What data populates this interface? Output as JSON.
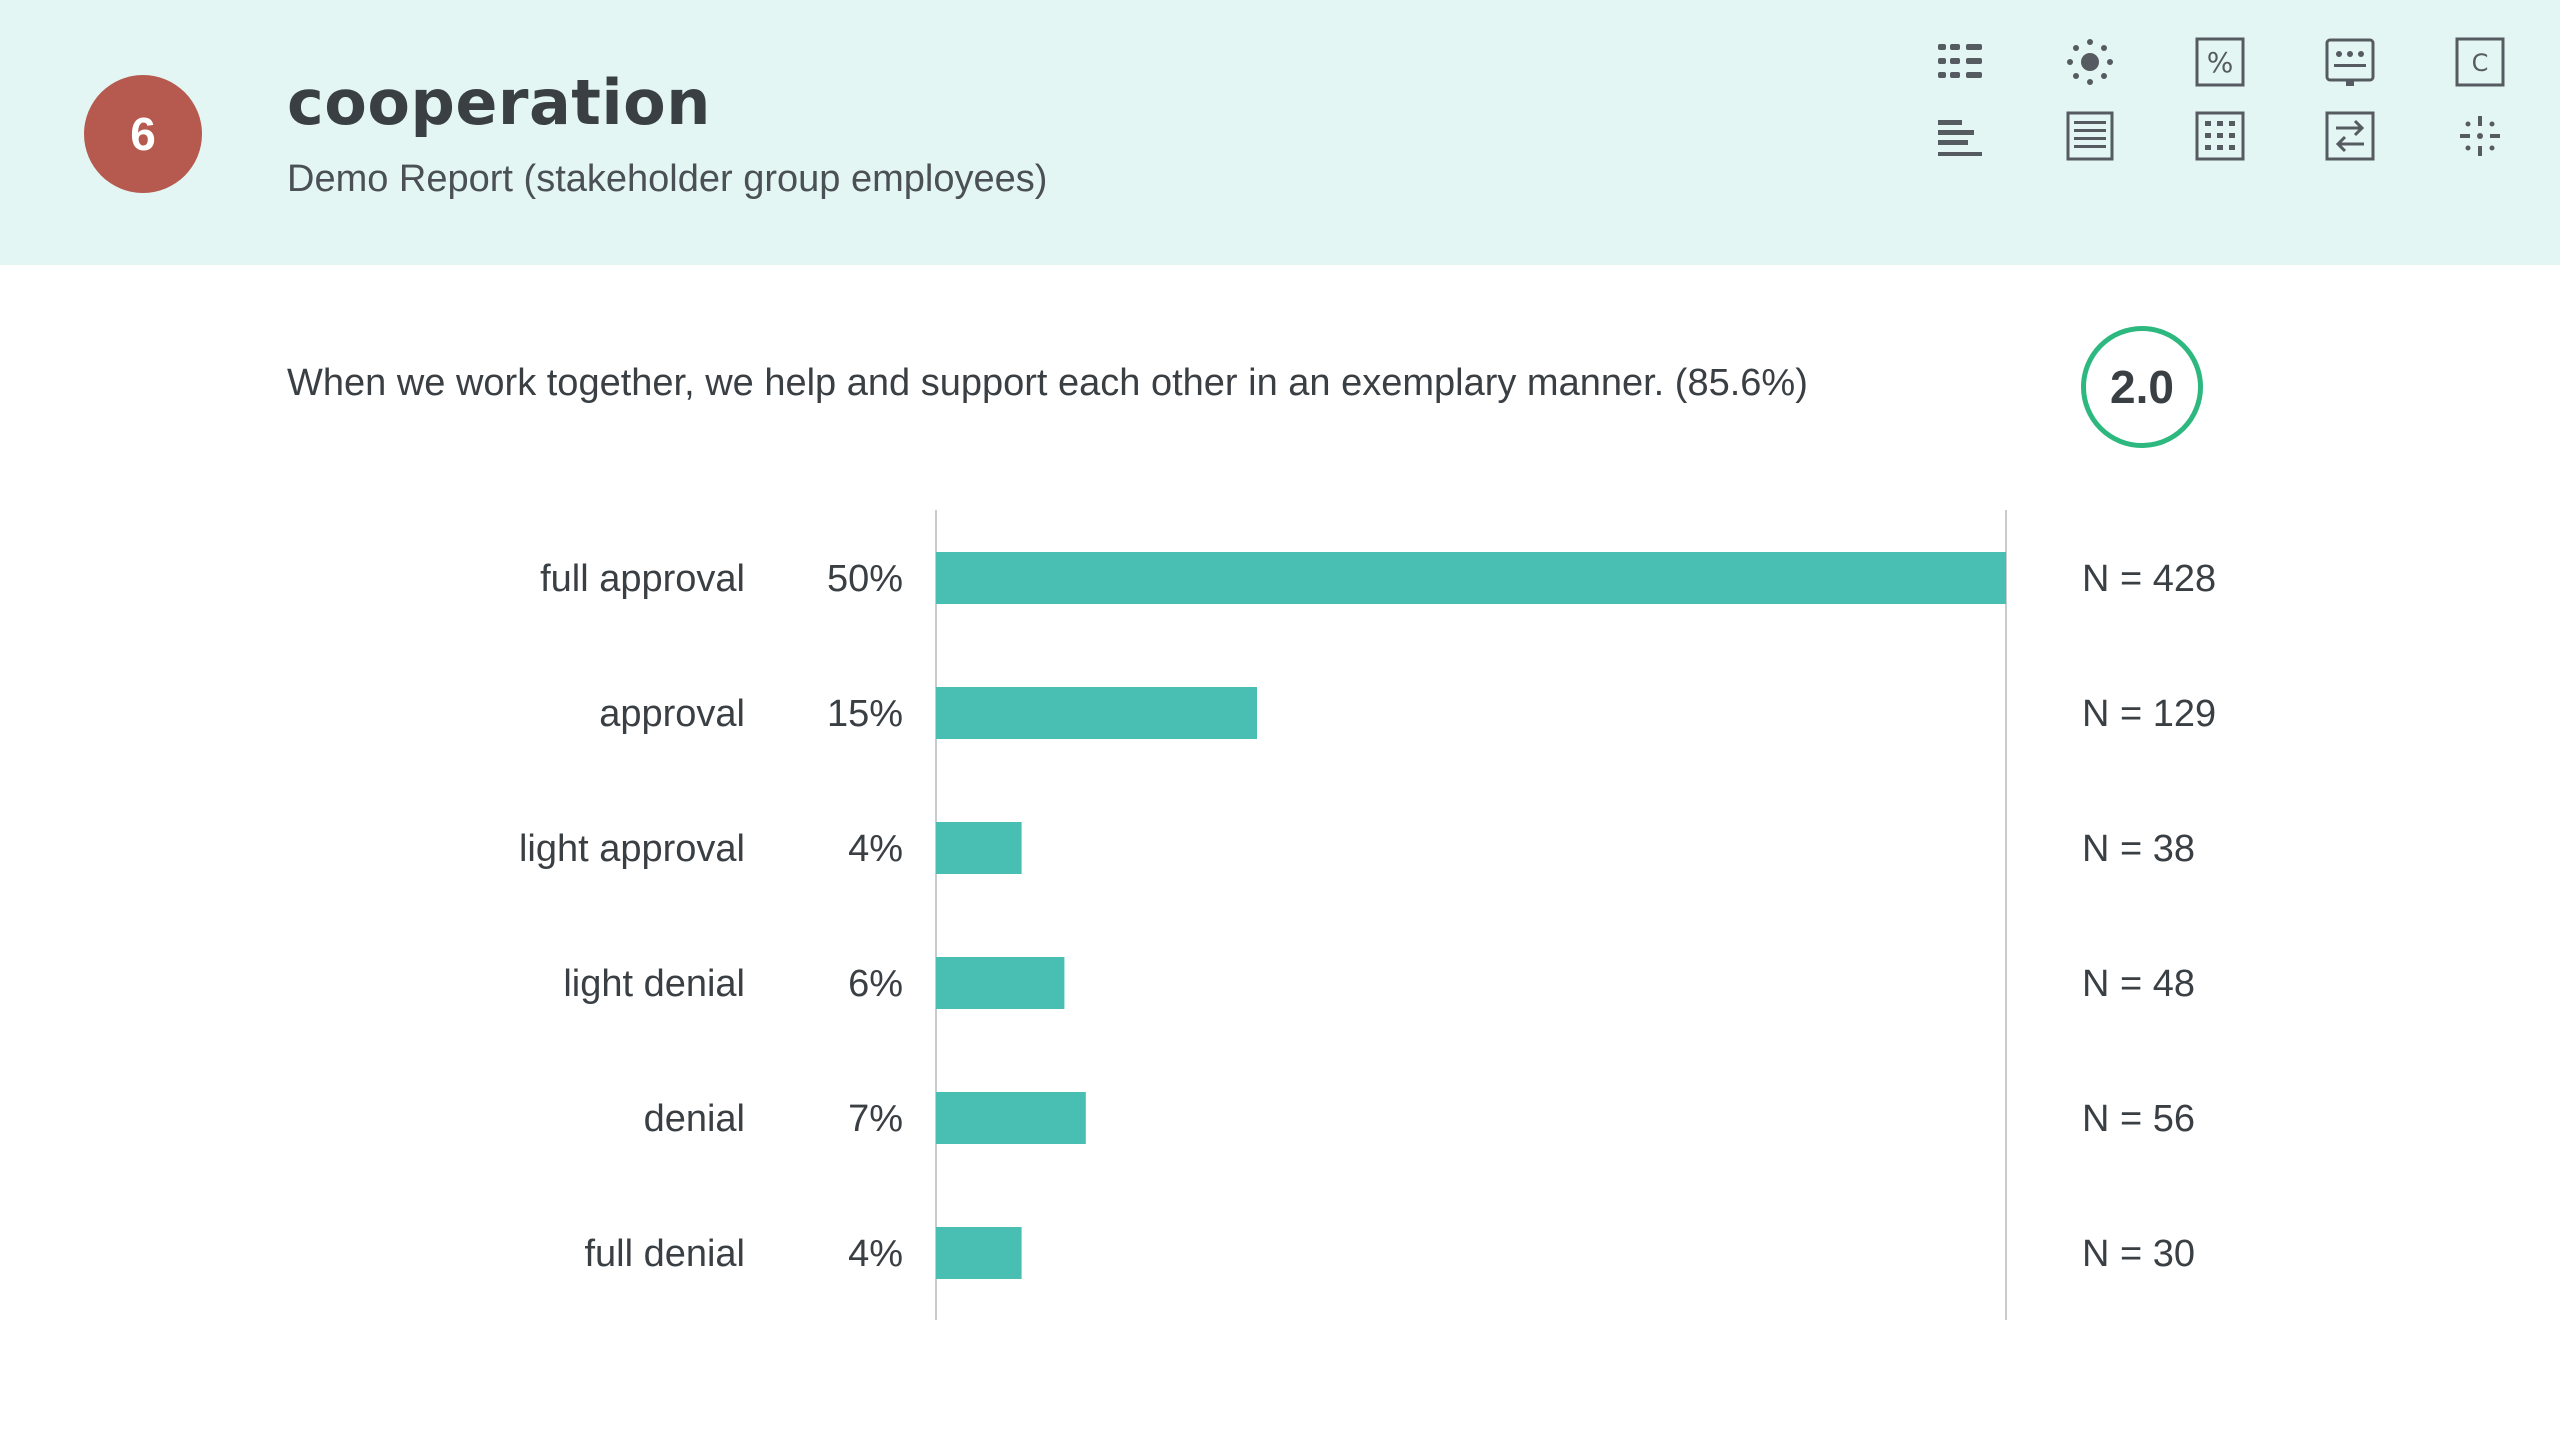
{
  "header": {
    "badge_number": "6",
    "title": "cooperation",
    "subtitle": "Demo Report (stakeholder group employees)"
  },
  "toolbar": {
    "icons": [
      {
        "name": "list-view-icon"
      },
      {
        "name": "sun-icon"
      },
      {
        "name": "percent-icon",
        "label": "%"
      },
      {
        "name": "dots-screen-icon"
      },
      {
        "name": "c-box-icon",
        "label": "C"
      },
      {
        "name": "bar-align-icon"
      },
      {
        "name": "document-icon"
      },
      {
        "name": "grid-dots-icon"
      },
      {
        "name": "swap-arrows-icon"
      },
      {
        "name": "sparkle-icon"
      }
    ]
  },
  "question": {
    "text": "When we work together, we help and support each other in an exemplary manner. (85.6%)",
    "score": "2.0"
  },
  "colors": {
    "header_bg": "#e3f6f3",
    "badge": "#b65a4f",
    "bar": "#48bfb2",
    "score_ring": "#2db87f"
  },
  "chart_data": {
    "type": "bar",
    "orientation": "horizontal",
    "categories": [
      "full approval",
      "approval",
      "light approval",
      "light denial",
      "denial",
      "full denial"
    ],
    "values": [
      50,
      15,
      4,
      6,
      7,
      4
    ],
    "value_labels": [
      "50%",
      "15%",
      "4%",
      "6%",
      "7%",
      "4%"
    ],
    "counts": [
      "N = 428",
      "N = 129",
      "N = 38",
      "N = 48",
      "N = 56",
      "N = 30"
    ],
    "xlim": [
      0,
      50
    ]
  }
}
